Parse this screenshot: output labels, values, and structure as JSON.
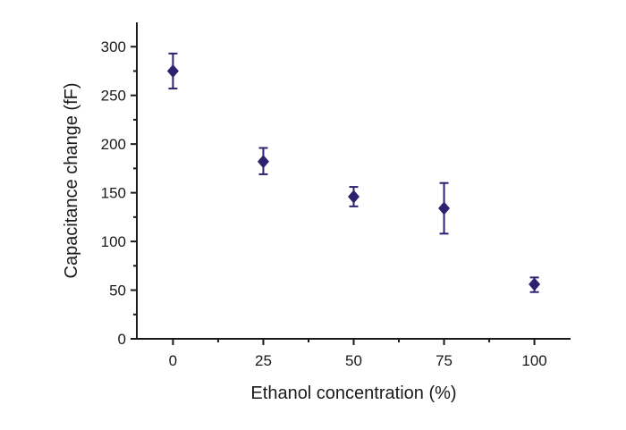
{
  "chart_data": {
    "type": "scatter",
    "title": "",
    "xlabel": "Ethanol concentration (%)",
    "ylabel": "Capacitance change (fF)",
    "xlim": [
      -10,
      110
    ],
    "ylim": [
      0,
      325
    ],
    "xticks": [
      0,
      25,
      50,
      75,
      100
    ],
    "yticks": [
      0,
      50,
      100,
      150,
      200,
      250,
      300
    ],
    "grid": false,
    "legend": "none",
    "marker": "diamond",
    "color": "#2e2170",
    "series": [
      {
        "points": [
          {
            "x": 0,
            "y": 275,
            "yerr_low": 257,
            "yerr_high": 293
          },
          {
            "x": 25,
            "y": 182,
            "yerr_low": 169,
            "yerr_high": 196
          },
          {
            "x": 50,
            "y": 146,
            "yerr_low": 136,
            "yerr_high": 156
          },
          {
            "x": 75,
            "y": 134,
            "yerr_low": 108,
            "yerr_high": 160
          },
          {
            "x": 100,
            "y": 56,
            "yerr_low": 48,
            "yerr_high": 63
          }
        ]
      }
    ]
  }
}
